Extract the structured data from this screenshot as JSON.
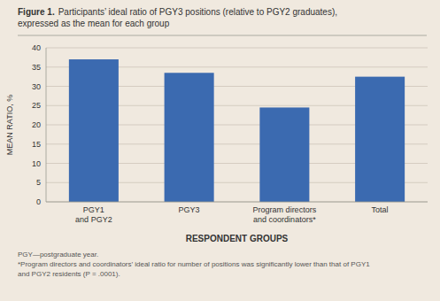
{
  "chart_data": {
    "type": "bar",
    "title": "Figure 1.",
    "subtitle": "Participants’ ideal ratio of PGY3 positions (relative to PGY2 graduates),\nexpressed as the mean for each group",
    "categories": [
      "PGY1\nand PGY2",
      "PGY3",
      "Program directors\nand coordinators*",
      "Total"
    ],
    "values": [
      37.0,
      33.5,
      24.5,
      32.5
    ],
    "color": "#3b6ab0",
    "x_label": "RESPONDENT GROUPS",
    "y_label": "MEAN RATIO, %",
    "ylim": [
      0,
      40
    ],
    "yticks": [
      0,
      5,
      10,
      15,
      20,
      25,
      30,
      35,
      40
    ],
    "grid": true,
    "annotations": [
      "PGY—postgraduate year.",
      "*Program directors and coordinators’ ideal ratio for number of positions was significantly lower than that of PGY1",
      "and PGY2 residents (P = .0001)."
    ]
  }
}
